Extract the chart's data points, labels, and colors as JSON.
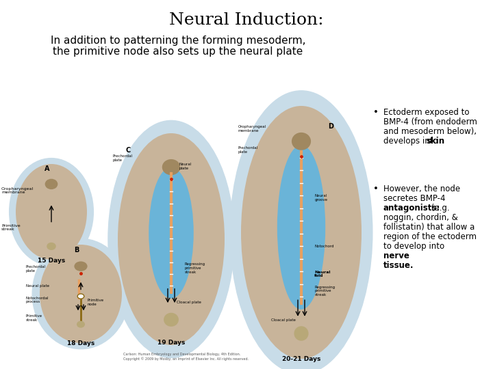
{
  "title": "Neural Induction:",
  "subtitle_line1": "In addition to patterning the forming mesoderm,",
  "subtitle_line2": "the primitive node also sets up the neural plate",
  "background_color": "#ffffff",
  "title_fontsize": 18,
  "subtitle_fontsize": 11,
  "bullet_fontsize": 9,
  "tan_color": "#c8b49a",
  "blue_color": "#6ab4d8",
  "orange_color": "#e8a060",
  "glow_color": "#c8dce8",
  "pp_color": "#a08860",
  "red_color": "#cc2200",
  "streak_color": "#8b6914",
  "copyright": "Carlson: Human Embryology and Developmental Biology, 4th Edition.\nCopyright © 2009 by Mosby, an Imprint of Elsevier Inc. All rights reserved."
}
